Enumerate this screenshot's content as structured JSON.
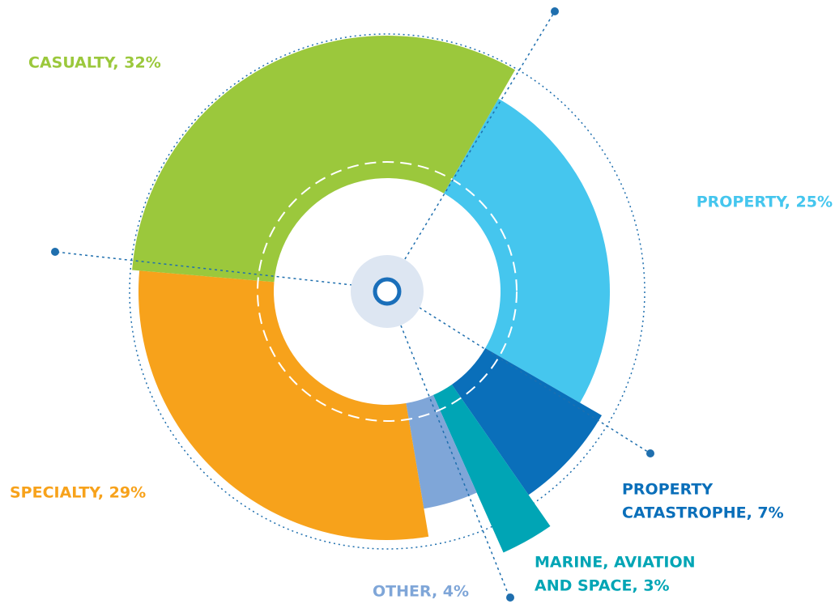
{
  "chart_data": {
    "type": "donut",
    "values": [
      25,
      7,
      3,
      4,
      29,
      32
    ],
    "value_labels": [
      [
        "PROPERTY, 25%"
      ],
      [
        "PROPERTY",
        "CATASTROPHE, 7%"
      ],
      [
        "MARINE, AVIATION",
        "AND SPACE, 3%"
      ],
      [
        "OTHER, 4%"
      ],
      [
        "SPECIALTY, 29%"
      ],
      [
        "CASUALTY, 32%"
      ]
    ],
    "colors": [
      "#45c6ee",
      "#0a6fba",
      "#00a5b5",
      "#7fa6d8",
      "#f7a21b",
      "#9bc83c"
    ]
  }
}
